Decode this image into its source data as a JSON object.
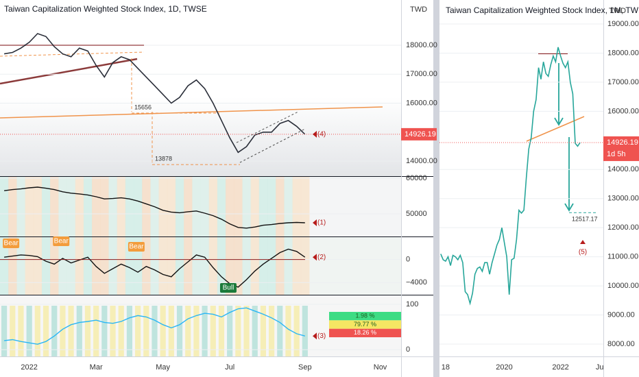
{
  "chart_data": [
    {
      "type": "line",
      "title": "Taiwan Capitalization Weighted Stock Index, 1D, TWSE",
      "y_axis_label": "TWD",
      "color": "#2a2e39",
      "grid": true,
      "categories": [
        null,
        null,
        null,
        "2022",
        null,
        null,
        null,
        null,
        null,
        null,
        null,
        "Mar",
        null,
        null,
        null,
        null,
        null,
        null,
        null,
        "May",
        null,
        null,
        null,
        null,
        null,
        null,
        null,
        "Jul",
        null,
        null,
        null,
        null,
        null,
        null,
        null,
        null,
        "Sep",
        null,
        null,
        null,
        null,
        null,
        null,
        null,
        null,
        "Nov",
        null,
        null
      ],
      "values": [
        17700,
        17750,
        17900,
        18100,
        18400,
        18300,
        17950,
        17700,
        17600,
        17900,
        17800,
        17300,
        16900,
        17400,
        17600,
        17500,
        17200,
        16900,
        16600,
        16300,
        16000,
        16200,
        16600,
        16800,
        16500,
        16000,
        15400,
        14800,
        14300,
        14500,
        14900,
        15000,
        15000,
        15300,
        15400,
        15200,
        14926.19,
        null,
        null,
        null,
        null,
        null,
        null,
        null,
        null,
        null,
        null,
        null
      ],
      "ylim": [
        13480,
        19560
      ],
      "yticks": [
        {
          "value": 14000,
          "label": "14000.00"
        },
        {
          "value": 16000,
          "label": "16000.00"
        },
        {
          "value": 17000,
          "label": "17000.00"
        },
        {
          "value": 18000,
          "label": "18000.00"
        }
      ],
      "levels": [
        15656,
        13878
      ],
      "marker": "(4)"
    },
    {
      "type": "line",
      "color": "#111111",
      "grid": true,
      "values": [
        56500,
        56800,
        57000,
        57300,
        57500,
        57200,
        56800,
        56200,
        55800,
        55600,
        55300,
        54800,
        54200,
        54300,
        54500,
        54200,
        53600,
        52800,
        52000,
        51000,
        50500,
        50300,
        50600,
        50800,
        50200,
        49500,
        48500,
        47200,
        46200,
        46000,
        46300,
        46800,
        47000,
        47300,
        47500,
        47600,
        47500,
        null,
        null,
        null,
        null,
        null,
        null,
        null,
        null,
        null,
        null,
        null
      ],
      "ylim": [
        43654,
        60385
      ],
      "yticks": [
        50000,
        60000
      ],
      "marker": "(1)"
    },
    {
      "type": "line",
      "color": "#111111",
      "grid": true,
      "values": [
        400,
        600,
        800,
        700,
        500,
        -300,
        -800,
        200,
        -600,
        -100,
        400,
        -1200,
        -2400,
        -1600,
        -800,
        -1400,
        -2200,
        -1200,
        -1800,
        -2600,
        -3000,
        -1600,
        -400,
        800,
        400,
        -1400,
        -3000,
        -4200,
        -4800,
        -3500,
        -2000,
        -800,
        200,
        1200,
        1800,
        1400,
        400,
        null,
        null,
        null,
        null,
        null,
        null,
        null,
        null,
        null,
        null,
        null
      ],
      "ylim": [
        -6118,
        3882
      ],
      "yticks": [
        {
          "value": -4000,
          "label": "−4000"
        },
        0
      ],
      "marker": "(2)",
      "signals": [
        "Bear",
        "Bear",
        "Bear",
        "Bull"
      ]
    },
    {
      "type": "line",
      "color": "#29b6f6",
      "grid": true,
      "values": [
        20,
        22,
        18,
        15,
        12,
        18,
        30,
        45,
        55,
        60,
        62,
        65,
        60,
        58,
        62,
        70,
        75,
        72,
        65,
        55,
        48,
        55,
        68,
        75,
        80,
        78,
        72,
        82,
        90,
        92,
        85,
        78,
        70,
        60,
        45,
        35,
        30,
        null,
        null,
        null,
        null,
        null,
        null,
        null,
        null,
        null,
        null,
        null
      ],
      "ylim": [
        -14.9,
        119.4
      ],
      "yticks": [
        0,
        100
      ],
      "marker": "(3)"
    },
    {
      "type": "table",
      "values": [
        1.98,
        79.77,
        18.26
      ],
      "value_labels": [
        "1.98 %",
        "79.77 %",
        "18.26 %"
      ],
      "colors": [
        "#3ddc84",
        "#f5e663",
        "#ef5350"
      ]
    },
    {
      "type": "line",
      "title": "Taiwan Capitalization Weighted Stock Index, 1M, TW",
      "y_axis_label": "TWD",
      "color": "#26a69a",
      "grid": true,
      "categories": [
        null,
        null,
        "18",
        null,
        null,
        null,
        null,
        null,
        null,
        null,
        null,
        null,
        null,
        null,
        null,
        null,
        null,
        null,
        null,
        null,
        null,
        null,
        null,
        null,
        null,
        null,
        "2020",
        null,
        null,
        null,
        null,
        null,
        null,
        null,
        null,
        null,
        null,
        null,
        null,
        null,
        null,
        null,
        null,
        null,
        null,
        null,
        null,
        null,
        null,
        "2022",
        null,
        null,
        null,
        null,
        null,
        null,
        null,
        null,
        null,
        null,
        null,
        null,
        null,
        null,
        null,
        "Ju",
        null
      ],
      "values": [
        11100,
        10900,
        10850,
        11000,
        10700,
        11050,
        11000,
        10900,
        11050,
        10800,
        9800,
        9700,
        9400,
        9750,
        10400,
        10600,
        10650,
        10500,
        10800,
        10800,
        10400,
        10800,
        11100,
        11400,
        11600,
        12000,
        11500,
        11000,
        9700,
        10900,
        10950,
        11600,
        12600,
        12500,
        12600,
        13700,
        14700,
        15100,
        16000,
        16400,
        17500,
        17100,
        17700,
        17300,
        17200,
        17600,
        17900,
        17700,
        18200,
        17900,
        17650,
        17500,
        17700,
        17000,
        16600,
        14900,
        14800,
        14926.19,
        null,
        null,
        null,
        null,
        null,
        null,
        null,
        null,
        null
      ],
      "ylim": [
        7576,
        19824
      ],
      "yticks": [
        {
          "value": 8000,
          "label": "8000.00"
        },
        {
          "value": 9000,
          "label": "9000.00"
        },
        {
          "value": 10000,
          "label": "10000.00"
        },
        {
          "value": 11000,
          "label": "11000.00"
        },
        {
          "value": 12000,
          "label": "12000.00"
        },
        {
          "value": 13000,
          "label": "13000.00"
        },
        {
          "value": 14000,
          "label": "14000.00"
        },
        {
          "value": 16000,
          "label": "16000.00"
        },
        {
          "value": 17000,
          "label": "17000.00"
        },
        {
          "value": 18000,
          "label": "18000.00"
        },
        {
          "value": 19000,
          "label": "19000.00"
        }
      ],
      "levels": [
        12517.17
      ],
      "marker": "(5)",
      "countdown": "1d 5h"
    }
  ]
}
